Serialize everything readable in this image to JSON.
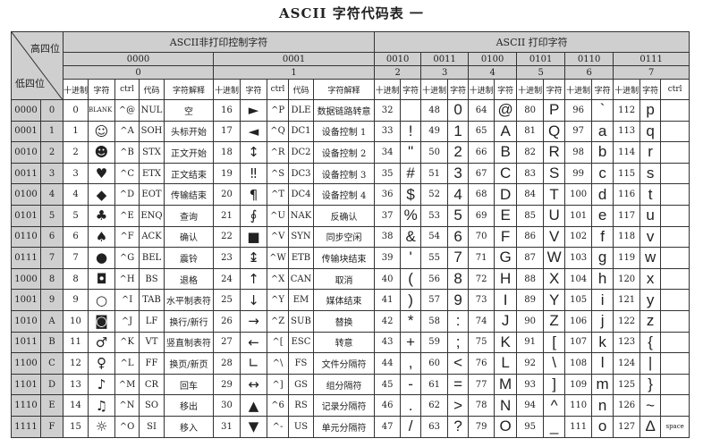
{
  "title": "ASCII 字符代码表 一",
  "corner": {
    "high": "高四位",
    "low": "低四位"
  },
  "groups": {
    "nonprint": "ASCII非打印控制字符",
    "print": "ASCII 打印字符"
  },
  "high_bits": [
    "0000",
    "0001",
    "0010",
    "0011",
    "0100",
    "0101",
    "0110",
    "0111"
  ],
  "high_hex": [
    "0",
    "1",
    "2",
    "3",
    "4",
    "5",
    "6",
    "7"
  ],
  "col_headers": {
    "dec": "十进制",
    "char": "字符",
    "ctrl": "ctrl",
    "code": "代码",
    "desc": "字符解释"
  },
  "rows": [
    {
      "bin": "0000",
      "hex": "0",
      "c0": [
        "0",
        "BLANK NULL",
        "^@",
        "NUL",
        "空"
      ],
      "c1": [
        "16",
        "►",
        "^P",
        "DLE",
        "数据链路转意"
      ],
      "p": [
        [
          "32",
          " "
        ],
        [
          "48",
          "0"
        ],
        [
          "64",
          "@"
        ],
        [
          "80",
          "P"
        ],
        [
          "96",
          "`"
        ],
        [
          "112",
          "p"
        ]
      ],
      "ctrl7": ""
    },
    {
      "bin": "0001",
      "hex": "1",
      "c0": [
        "1",
        "☺",
        "^A",
        "SOH",
        "头标开始"
      ],
      "c1": [
        "17",
        "◄",
        "^Q",
        "DC1",
        "设备控制 1"
      ],
      "p": [
        [
          "33",
          "!"
        ],
        [
          "49",
          "1"
        ],
        [
          "65",
          "A"
        ],
        [
          "81",
          "Q"
        ],
        [
          "97",
          "a"
        ],
        [
          "113",
          "q"
        ]
      ],
      "ctrl7": ""
    },
    {
      "bin": "0010",
      "hex": "2",
      "c0": [
        "2",
        "☻",
        "^B",
        "STX",
        "正文开始"
      ],
      "c1": [
        "18",
        "↕",
        "^R",
        "DC2",
        "设备控制 2"
      ],
      "p": [
        [
          "34",
          "\""
        ],
        [
          "50",
          "2"
        ],
        [
          "66",
          "B"
        ],
        [
          "82",
          "R"
        ],
        [
          "98",
          "b"
        ],
        [
          "114",
          "r"
        ]
      ],
      "ctrl7": ""
    },
    {
      "bin": "0011",
      "hex": "3",
      "c0": [
        "3",
        "♥",
        "^C",
        "ETX",
        "正文结束"
      ],
      "c1": [
        "19",
        "‼",
        "^S",
        "DC3",
        "设备控制 3"
      ],
      "p": [
        [
          "35",
          "#"
        ],
        [
          "51",
          "3"
        ],
        [
          "67",
          "C"
        ],
        [
          "83",
          "S"
        ],
        [
          "99",
          "c"
        ],
        [
          "115",
          "s"
        ]
      ],
      "ctrl7": ""
    },
    {
      "bin": "0100",
      "hex": "4",
      "c0": [
        "4",
        "◆",
        "^D",
        "EOT",
        "传输结束"
      ],
      "c1": [
        "20",
        "¶",
        "^T",
        "DC4",
        "设备控制 4"
      ],
      "p": [
        [
          "36",
          "$"
        ],
        [
          "52",
          "4"
        ],
        [
          "68",
          "D"
        ],
        [
          "84",
          "T"
        ],
        [
          "100",
          "d"
        ],
        [
          "116",
          "t"
        ]
      ],
      "ctrl7": ""
    },
    {
      "bin": "0101",
      "hex": "5",
      "c0": [
        "5",
        "♣",
        "^E",
        "ENQ",
        "查询"
      ],
      "c1": [
        "21",
        "∮",
        "^U",
        "NAK",
        "反确认"
      ],
      "p": [
        [
          "37",
          "%"
        ],
        [
          "53",
          "5"
        ],
        [
          "69",
          "E"
        ],
        [
          "85",
          "U"
        ],
        [
          "101",
          "e"
        ],
        [
          "117",
          "u"
        ]
      ],
      "ctrl7": ""
    },
    {
      "bin": "0110",
      "hex": "6",
      "c0": [
        "6",
        "♠",
        "^F",
        "ACK",
        "确认"
      ],
      "c1": [
        "22",
        "■",
        "^V",
        "SYN",
        "同步空闲"
      ],
      "p": [
        [
          "38",
          "&"
        ],
        [
          "54",
          "6"
        ],
        [
          "70",
          "F"
        ],
        [
          "86",
          "V"
        ],
        [
          "102",
          "f"
        ],
        [
          "118",
          "v"
        ]
      ],
      "ctrl7": ""
    },
    {
      "bin": "0111",
      "hex": "7",
      "c0": [
        "7",
        "●",
        "^G",
        "BEL",
        "震铃"
      ],
      "c1": [
        "23",
        "↨",
        "^W",
        "ETB",
        "传输块结束"
      ],
      "p": [
        [
          "39",
          "'"
        ],
        [
          "55",
          "7"
        ],
        [
          "71",
          "G"
        ],
        [
          "87",
          "W"
        ],
        [
          "103",
          "g"
        ],
        [
          "119",
          "w"
        ]
      ],
      "ctrl7": ""
    },
    {
      "bin": "1000",
      "hex": "8",
      "c0": [
        "8",
        "◘",
        "^H",
        "BS",
        "退格"
      ],
      "c1": [
        "24",
        "↑",
        "^X",
        "CAN",
        "取消"
      ],
      "p": [
        [
          "40",
          "("
        ],
        [
          "56",
          "8"
        ],
        [
          "72",
          "H"
        ],
        [
          "88",
          "X"
        ],
        [
          "104",
          "h"
        ],
        [
          "120",
          "x"
        ]
      ],
      "ctrl7": ""
    },
    {
      "bin": "1001",
      "hex": "9",
      "c0": [
        "9",
        "○",
        "^I",
        "TAB",
        "水平制表符"
      ],
      "c1": [
        "25",
        "↓",
        "^Y",
        "EM",
        "媒体结束"
      ],
      "p": [
        [
          "41",
          ")"
        ],
        [
          "57",
          "9"
        ],
        [
          "73",
          "I"
        ],
        [
          "89",
          "Y"
        ],
        [
          "105",
          "i"
        ],
        [
          "121",
          "y"
        ]
      ],
      "ctrl7": ""
    },
    {
      "bin": "1010",
      "hex": "A",
      "c0": [
        "10",
        "◙",
        "^J",
        "LF",
        "换行/新行"
      ],
      "c1": [
        "26",
        "→",
        "^Z",
        "SUB",
        "替换"
      ],
      "p": [
        [
          "42",
          "*"
        ],
        [
          "58",
          ":"
        ],
        [
          "74",
          "J"
        ],
        [
          "90",
          "Z"
        ],
        [
          "106",
          "j"
        ],
        [
          "122",
          "z"
        ]
      ],
      "ctrl7": ""
    },
    {
      "bin": "1011",
      "hex": "B",
      "c0": [
        "11",
        "♂",
        "^K",
        "VT",
        "竖直制表符"
      ],
      "c1": [
        "27",
        "←",
        "^[",
        "ESC",
        "转意"
      ],
      "p": [
        [
          "43",
          "+"
        ],
        [
          "59",
          ";"
        ],
        [
          "75",
          "K"
        ],
        [
          "91",
          "["
        ],
        [
          "107",
          "k"
        ],
        [
          "123",
          "{"
        ]
      ],
      "ctrl7": ""
    },
    {
      "bin": "1100",
      "hex": "C",
      "c0": [
        "12",
        "♀",
        "^L",
        "FF",
        "换页/新页"
      ],
      "c1": [
        "28",
        "∟",
        "^\\",
        "FS",
        "文件分隔符"
      ],
      "p": [
        [
          "44",
          ","
        ],
        [
          "60",
          "<"
        ],
        [
          "76",
          "L"
        ],
        [
          "92",
          "\\"
        ],
        [
          "108",
          "l"
        ],
        [
          "124",
          "|"
        ]
      ],
      "ctrl7": ""
    },
    {
      "bin": "1101",
      "hex": "D",
      "c0": [
        "13",
        "♪",
        "^M",
        "CR",
        "回车"
      ],
      "c1": [
        "29",
        "↔",
        "^]",
        "GS",
        "组分隔符"
      ],
      "p": [
        [
          "45",
          "-"
        ],
        [
          "61",
          "="
        ],
        [
          "77",
          "M"
        ],
        [
          "93",
          "]"
        ],
        [
          "109",
          "m"
        ],
        [
          "125",
          "}"
        ]
      ],
      "ctrl7": ""
    },
    {
      "bin": "1110",
      "hex": "E",
      "c0": [
        "14",
        "♫",
        "^N",
        "SO",
        "移出"
      ],
      "c1": [
        "30",
        "▲",
        "^6",
        "RS",
        "记录分隔符"
      ],
      "p": [
        [
          "46",
          "."
        ],
        [
          "62",
          ">"
        ],
        [
          "78",
          "N"
        ],
        [
          "94",
          "^"
        ],
        [
          "110",
          "n"
        ],
        [
          "126",
          "~"
        ]
      ],
      "ctrl7": ""
    },
    {
      "bin": "1111",
      "hex": "F",
      "c0": [
        "15",
        "☼",
        "^O",
        "SI",
        "移入"
      ],
      "c1": [
        "31",
        "▼",
        "^-",
        "US",
        "单元分隔符"
      ],
      "p": [
        [
          "47",
          "/"
        ],
        [
          "63",
          "?"
        ],
        [
          "79",
          "O"
        ],
        [
          "95",
          "_"
        ],
        [
          "111",
          "o"
        ],
        [
          "127",
          "Δ"
        ]
      ],
      "ctrl7": "space"
    }
  ]
}
